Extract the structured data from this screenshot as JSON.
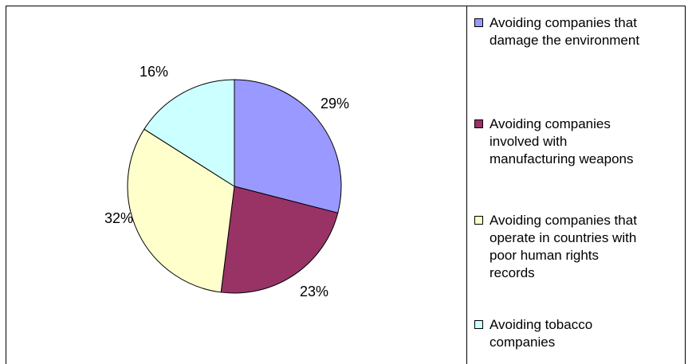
{
  "chart_data": {
    "type": "pie",
    "slices": [
      {
        "label": "Avoiding companies that damage the environment",
        "value": 29,
        "display": "29%",
        "color": "#9999FF"
      },
      {
        "label": "Avoiding companies involved with manufacturing weapons",
        "value": 23,
        "display": "23%",
        "color": "#993366"
      },
      {
        "label": "Avoiding companies that operate in countries with poor human rights records",
        "value": 32,
        "display": "32%",
        "color": "#FFFFCC"
      },
      {
        "label": "Avoiding tobacco companies",
        "value": 16,
        "display": "16%",
        "color": "#CCFFFF"
      }
    ],
    "legend": {
      "placement": "right",
      "items": [
        [
          "Avoiding companies that",
          "damage the environment"
        ],
        [
          "Avoiding companies",
          "involved with",
          "manufacturing weapons"
        ],
        [
          "Avoiding companies that",
          "operate in countries with",
          "poor human rights",
          "records"
        ],
        [
          "Avoiding tobacco",
          "companies"
        ]
      ]
    }
  }
}
